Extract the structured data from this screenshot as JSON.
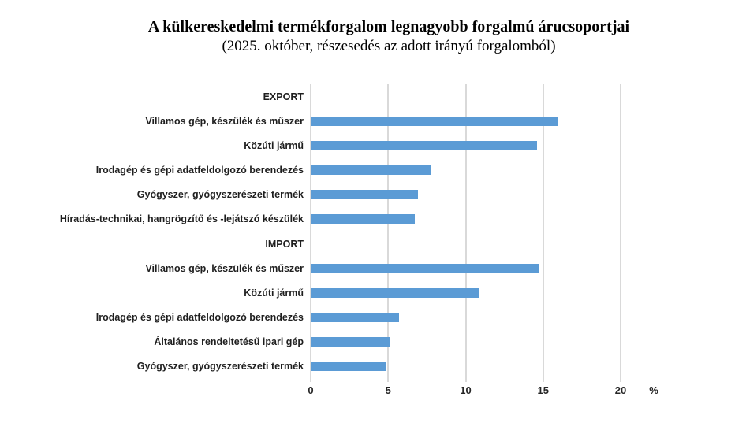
{
  "chart_data": {
    "type": "bar",
    "orientation": "horizontal",
    "title": "A külkereskedelmi termékforgalom legnagyobb forgalmú árucsoportjai",
    "subtitle": "(2025. október, részesedés az adott irányú forgalomból)",
    "xlim": [
      0,
      20
    ],
    "x_ticks": [
      0,
      5,
      10,
      15,
      20
    ],
    "x_unit": "%",
    "grid": true,
    "legend": false,
    "bar_color": "#5B9BD5",
    "gridline_color": "#D9D9D9",
    "groups": [
      {
        "section": "EXPORT",
        "items": [
          {
            "label": "Villamos gép, készülék és műszer",
            "value": 16.0
          },
          {
            "label": "Közúti jármű",
            "value": 14.6
          },
          {
            "label": "Irodagép és gépi adatfeldolgozó berendezés",
            "value": 7.8
          },
          {
            "label": "Gyógyszer, gyógyszerészeti termék",
            "value": 6.9
          },
          {
            "label": "Híradás-technikai, hangrögzítő és -lejátszó készülék",
            "value": 6.7
          }
        ]
      },
      {
        "section": "IMPORT",
        "items": [
          {
            "label": "Villamos gép, készülék és műszer",
            "value": 14.7
          },
          {
            "label": "Közúti jármű",
            "value": 10.9
          },
          {
            "label": "Irodagép és gépi adatfeldolgozó berendezés",
            "value": 5.7
          },
          {
            "label": "Általános rendeltetésű ipari gép",
            "value": 5.1
          },
          {
            "label": "Gyógyszer, gyógyszerészeti termék",
            "value": 4.9
          }
        ]
      }
    ]
  }
}
